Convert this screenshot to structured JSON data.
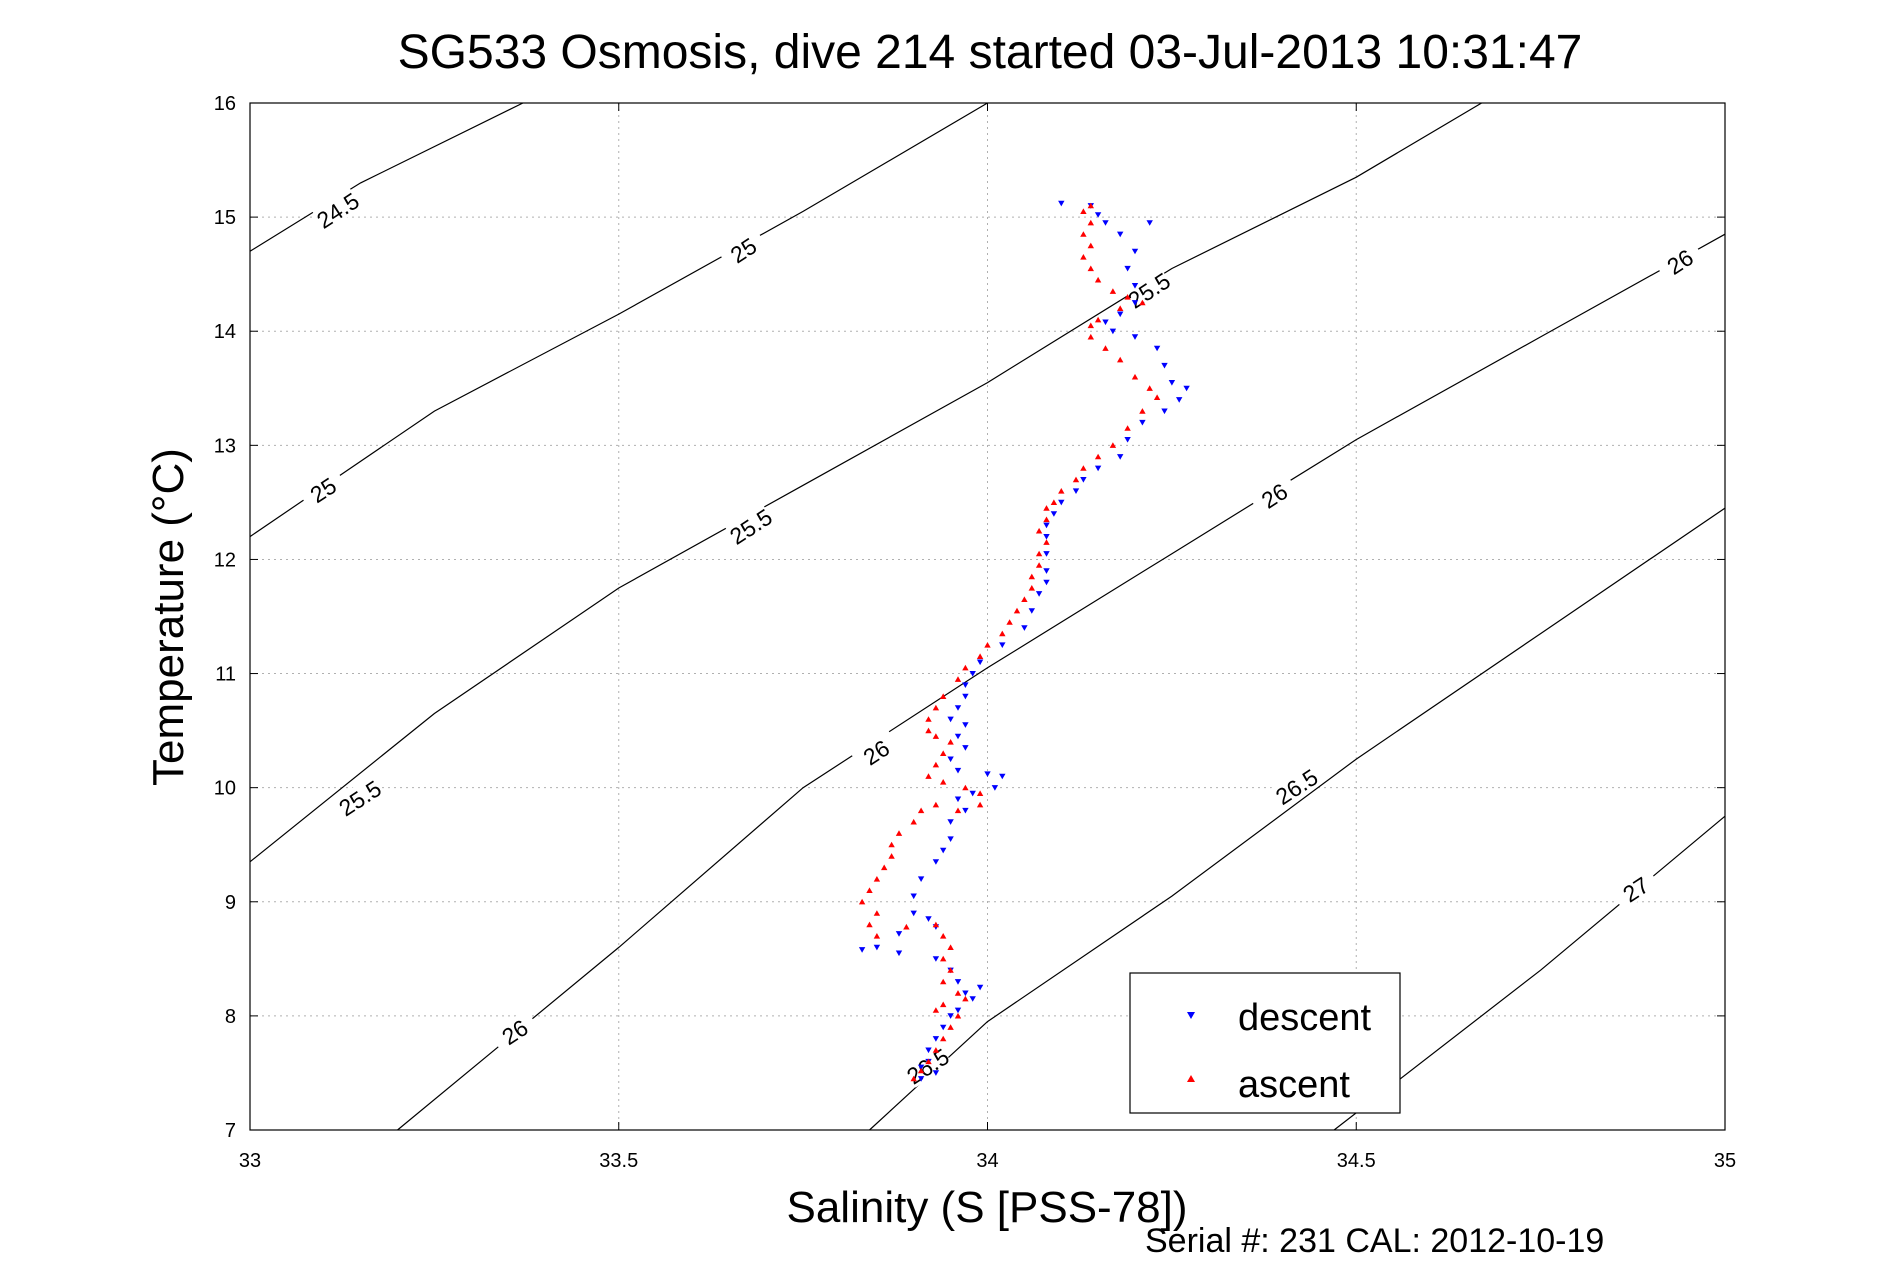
{
  "chart_data": {
    "type": "scatter",
    "title": "SG533 Osmosis, dive 214 started 03-Jul-2013 10:31:47",
    "xlabel": "Salinity (S [PSS-78])",
    "ylabel": "Temperature (°C)",
    "xlim": [
      33,
      35
    ],
    "ylim": [
      7,
      16
    ],
    "xticks": [
      "33",
      "33.5",
      "34",
      "34.5",
      "35"
    ],
    "yticks": [
      "7",
      "8",
      "9",
      "10",
      "11",
      "12",
      "13",
      "14",
      "15",
      "16"
    ],
    "grid": true,
    "legend_position": "bottom-right",
    "footer": "Serial #: 231  CAL: 2012-10-19",
    "density_contours": [
      {
        "label": "24.5",
        "points": [
          [
            33,
            14.7
          ],
          [
            33.15,
            15.3
          ],
          [
            33.37,
            16
          ]
        ],
        "label_pos": [
          33.12,
          15.05
        ]
      },
      {
        "label": "25",
        "points": [
          [
            33,
            12.2
          ],
          [
            33.25,
            13.3
          ],
          [
            33.5,
            14.15
          ],
          [
            33.75,
            15.05
          ],
          [
            34.0,
            16
          ]
        ],
        "label_pos": [
          33.67,
          14.7
        ]
      },
      {
        "label": "25",
        "points": [
          [
            33,
            12.2
          ]
        ],
        "label_pos": [
          33.1,
          12.6
        ]
      },
      {
        "label": "25.5",
        "points": [
          [
            33,
            9.35
          ],
          [
            33.25,
            10.65
          ],
          [
            33.5,
            11.75
          ],
          [
            33.75,
            12.65
          ],
          [
            34.0,
            13.55
          ],
          [
            34.25,
            14.55
          ],
          [
            34.5,
            15.35
          ],
          [
            34.67,
            16
          ]
        ],
        "label_pos": [
          33.68,
          12.28
        ]
      },
      {
        "label": "25.5",
        "points": [
          [
            33,
            9.35
          ]
        ],
        "label_pos": [
          33.15,
          9.9
        ]
      },
      {
        "label": "25.5",
        "points": [
          [
            33,
            9.35
          ]
        ],
        "label_pos": [
          34.22,
          14.35
        ]
      },
      {
        "label": "26",
        "points": [
          [
            33.2,
            7
          ],
          [
            33.5,
            8.6
          ],
          [
            33.75,
            10.0
          ],
          [
            34.0,
            11.05
          ],
          [
            34.25,
            12.05
          ],
          [
            34.5,
            13.05
          ],
          [
            34.75,
            13.95
          ],
          [
            35,
            14.85
          ]
        ],
        "label_pos": [
          33.36,
          7.85
        ]
      },
      {
        "label": "26",
        "points": [
          [
            33.2,
            7
          ]
        ],
        "label_pos": [
          33.85,
          10.3
        ]
      },
      {
        "label": "26",
        "points": [
          [
            33.2,
            7
          ]
        ],
        "label_pos": [
          34.39,
          12.55
        ]
      },
      {
        "label": "26",
        "points": [
          [
            33.2,
            7
          ]
        ],
        "label_pos": [
          34.94,
          14.6
        ]
      },
      {
        "label": "26.5",
        "points": [
          [
            33.84,
            7
          ],
          [
            34.0,
            7.95
          ],
          [
            34.25,
            9.05
          ],
          [
            34.5,
            10.25
          ],
          [
            34.75,
            11.35
          ],
          [
            35,
            12.45
          ]
        ],
        "label_pos": [
          33.92,
          7.55
        ]
      },
      {
        "label": "26.5",
        "points": [
          [
            33.84,
            7
          ]
        ],
        "label_pos": [
          34.42,
          10.0
        ]
      },
      {
        "label": "27",
        "points": [
          [
            34.47,
            7
          ],
          [
            34.75,
            8.4
          ],
          [
            35,
            9.75
          ]
        ],
        "label_pos": [
          34.88,
          9.1
        ]
      }
    ],
    "series": [
      {
        "name": "descent",
        "color": "#0000ff",
        "marker": "triangle-down",
        "points": [
          [
            34.1,
            15.12
          ],
          [
            34.14,
            15.1
          ],
          [
            34.15,
            15.02
          ],
          [
            34.16,
            14.95
          ],
          [
            34.18,
            14.85
          ],
          [
            34.2,
            14.7
          ],
          [
            34.22,
            14.95
          ],
          [
            34.19,
            14.55
          ],
          [
            34.2,
            14.4
          ],
          [
            34.2,
            14.25
          ],
          [
            34.18,
            14.15
          ],
          [
            34.16,
            14.08
          ],
          [
            34.17,
            14.0
          ],
          [
            34.2,
            13.95
          ],
          [
            34.23,
            13.85
          ],
          [
            34.24,
            13.7
          ],
          [
            34.25,
            13.55
          ],
          [
            34.26,
            13.4
          ],
          [
            34.27,
            13.5
          ],
          [
            34.24,
            13.3
          ],
          [
            34.21,
            13.2
          ],
          [
            34.19,
            13.05
          ],
          [
            34.18,
            12.9
          ],
          [
            34.15,
            12.8
          ],
          [
            34.13,
            12.7
          ],
          [
            34.12,
            12.6
          ],
          [
            34.1,
            12.5
          ],
          [
            34.09,
            12.4
          ],
          [
            34.08,
            12.3
          ],
          [
            34.08,
            12.2
          ],
          [
            34.08,
            12.05
          ],
          [
            34.08,
            11.9
          ],
          [
            34.08,
            11.8
          ],
          [
            34.07,
            11.7
          ],
          [
            34.06,
            11.55
          ],
          [
            34.05,
            11.4
          ],
          [
            34.02,
            11.25
          ],
          [
            33.99,
            11.1
          ],
          [
            33.98,
            11.0
          ],
          [
            33.97,
            10.9
          ],
          [
            33.97,
            10.8
          ],
          [
            33.96,
            10.7
          ],
          [
            33.95,
            10.6
          ],
          [
            33.97,
            10.55
          ],
          [
            33.96,
            10.45
          ],
          [
            33.97,
            10.35
          ],
          [
            33.95,
            10.25
          ],
          [
            33.96,
            10.15
          ],
          [
            34.0,
            10.12
          ],
          [
            34.02,
            10.1
          ],
          [
            34.01,
            10.0
          ],
          [
            33.98,
            9.95
          ],
          [
            33.96,
            9.9
          ],
          [
            33.97,
            9.8
          ],
          [
            33.95,
            9.7
          ],
          [
            33.95,
            9.55
          ],
          [
            33.94,
            9.45
          ],
          [
            33.93,
            9.35
          ],
          [
            33.91,
            9.2
          ],
          [
            33.9,
            9.05
          ],
          [
            33.9,
            8.9
          ],
          [
            33.92,
            8.85
          ],
          [
            33.93,
            8.78
          ],
          [
            33.88,
            8.72
          ],
          [
            33.85,
            8.6
          ],
          [
            33.83,
            8.58
          ],
          [
            33.88,
            8.55
          ],
          [
            33.93,
            8.5
          ],
          [
            33.95,
            8.4
          ],
          [
            33.96,
            8.3
          ],
          [
            33.97,
            8.2
          ],
          [
            33.99,
            8.25
          ],
          [
            33.98,
            8.15
          ],
          [
            33.96,
            8.05
          ],
          [
            33.95,
            8.0
          ],
          [
            33.94,
            7.9
          ],
          [
            33.93,
            7.8
          ],
          [
            33.92,
            7.7
          ],
          [
            33.92,
            7.6
          ],
          [
            33.91,
            7.55
          ],
          [
            33.93,
            7.5
          ],
          [
            33.91,
            7.45
          ]
        ]
      },
      {
        "name": "ascent",
        "color": "#ff0000",
        "marker": "triangle-up",
        "points": [
          [
            34.14,
            15.1
          ],
          [
            34.13,
            15.05
          ],
          [
            34.14,
            14.95
          ],
          [
            34.13,
            14.85
          ],
          [
            34.14,
            14.75
          ],
          [
            34.13,
            14.65
          ],
          [
            34.14,
            14.55
          ],
          [
            34.15,
            14.45
          ],
          [
            34.17,
            14.35
          ],
          [
            34.19,
            14.3
          ],
          [
            34.21,
            14.25
          ],
          [
            34.18,
            14.2
          ],
          [
            34.15,
            14.1
          ],
          [
            34.14,
            14.05
          ],
          [
            34.14,
            13.95
          ],
          [
            34.16,
            13.85
          ],
          [
            34.18,
            13.75
          ],
          [
            34.2,
            13.6
          ],
          [
            34.22,
            13.5
          ],
          [
            34.23,
            13.42
          ],
          [
            34.21,
            13.3
          ],
          [
            34.19,
            13.15
          ],
          [
            34.17,
            13.0
          ],
          [
            34.15,
            12.9
          ],
          [
            34.13,
            12.8
          ],
          [
            34.12,
            12.7
          ],
          [
            34.1,
            12.6
          ],
          [
            34.09,
            12.5
          ],
          [
            34.08,
            12.45
          ],
          [
            34.08,
            12.35
          ],
          [
            34.07,
            12.25
          ],
          [
            34.08,
            12.15
          ],
          [
            34.07,
            12.05
          ],
          [
            34.07,
            11.95
          ],
          [
            34.06,
            11.85
          ],
          [
            34.06,
            11.75
          ],
          [
            34.05,
            11.65
          ],
          [
            34.04,
            11.55
          ],
          [
            34.03,
            11.45
          ],
          [
            34.02,
            11.35
          ],
          [
            34.0,
            11.25
          ],
          [
            33.99,
            11.15
          ],
          [
            33.97,
            11.05
          ],
          [
            33.96,
            10.95
          ],
          [
            33.94,
            10.8
          ],
          [
            33.93,
            10.7
          ],
          [
            33.92,
            10.6
          ],
          [
            33.92,
            10.5
          ],
          [
            33.93,
            10.45
          ],
          [
            33.95,
            10.4
          ],
          [
            33.94,
            10.3
          ],
          [
            33.93,
            10.2
          ],
          [
            33.92,
            10.1
          ],
          [
            33.94,
            10.05
          ],
          [
            33.97,
            10.0
          ],
          [
            33.99,
            9.95
          ],
          [
            33.99,
            9.85
          ],
          [
            33.96,
            9.8
          ],
          [
            33.93,
            9.85
          ],
          [
            33.91,
            9.8
          ],
          [
            33.9,
            9.7
          ],
          [
            33.88,
            9.6
          ],
          [
            33.87,
            9.5
          ],
          [
            33.87,
            9.4
          ],
          [
            33.86,
            9.3
          ],
          [
            33.85,
            9.2
          ],
          [
            33.84,
            9.1
          ],
          [
            33.83,
            9.0
          ],
          [
            33.85,
            8.9
          ],
          [
            33.84,
            8.8
          ],
          [
            33.85,
            8.7
          ],
          [
            33.89,
            8.78
          ],
          [
            33.93,
            8.8
          ],
          [
            33.94,
            8.7
          ],
          [
            33.95,
            8.6
          ],
          [
            33.94,
            8.5
          ],
          [
            33.95,
            8.4
          ],
          [
            33.94,
            8.3
          ],
          [
            33.96,
            8.2
          ],
          [
            33.97,
            8.15
          ],
          [
            33.94,
            8.1
          ],
          [
            33.93,
            8.05
          ],
          [
            33.96,
            8.0
          ],
          [
            33.95,
            7.9
          ],
          [
            33.94,
            7.8
          ],
          [
            33.93,
            7.7
          ],
          [
            33.92,
            7.6
          ],
          [
            33.91,
            7.52
          ],
          [
            33.9,
            7.45
          ]
        ]
      }
    ]
  }
}
